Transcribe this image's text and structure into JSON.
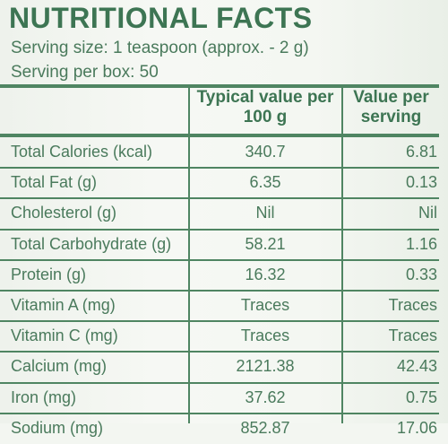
{
  "title": "NUTRITIONAL FACTS",
  "serving_size": "Serving size: 1 teaspoon (approx. - 2 g)",
  "serving_per_box": "Serving per box: 50",
  "columns": {
    "typical_line1": "Typical value per",
    "typical_line2": "100 g",
    "serving_line1": "Value per",
    "serving_line2": "serving"
  },
  "rows": [
    {
      "label": "Total Calories (kcal)",
      "per100g": "340.7",
      "perServing": "6.81"
    },
    {
      "label": "Total Fat (g)",
      "per100g": "6.35",
      "perServing": "0.13"
    },
    {
      "label": "Cholesterol (g)",
      "per100g": "Nil",
      "perServing": "Nil"
    },
    {
      "label": "Total Carbohydrate (g)",
      "per100g": "58.21",
      "perServing": "1.16"
    },
    {
      "label": "Protein (g)",
      "per100g": "16.32",
      "perServing": "0.33"
    },
    {
      "label": "Vitamin A (mg)",
      "per100g": "Traces",
      "perServing": "Traces"
    },
    {
      "label": "Vitamin C (mg)",
      "per100g": "Traces",
      "perServing": "Traces"
    },
    {
      "label": "Calcium (mg)",
      "per100g": "2121.38",
      "perServing": "42.43"
    },
    {
      "label": "Iron (mg)",
      "per100g": "37.62",
      "perServing": "0.75"
    },
    {
      "label": "Sodium (mg)",
      "per100g": "852.87",
      "perServing": "17.06"
    }
  ]
}
